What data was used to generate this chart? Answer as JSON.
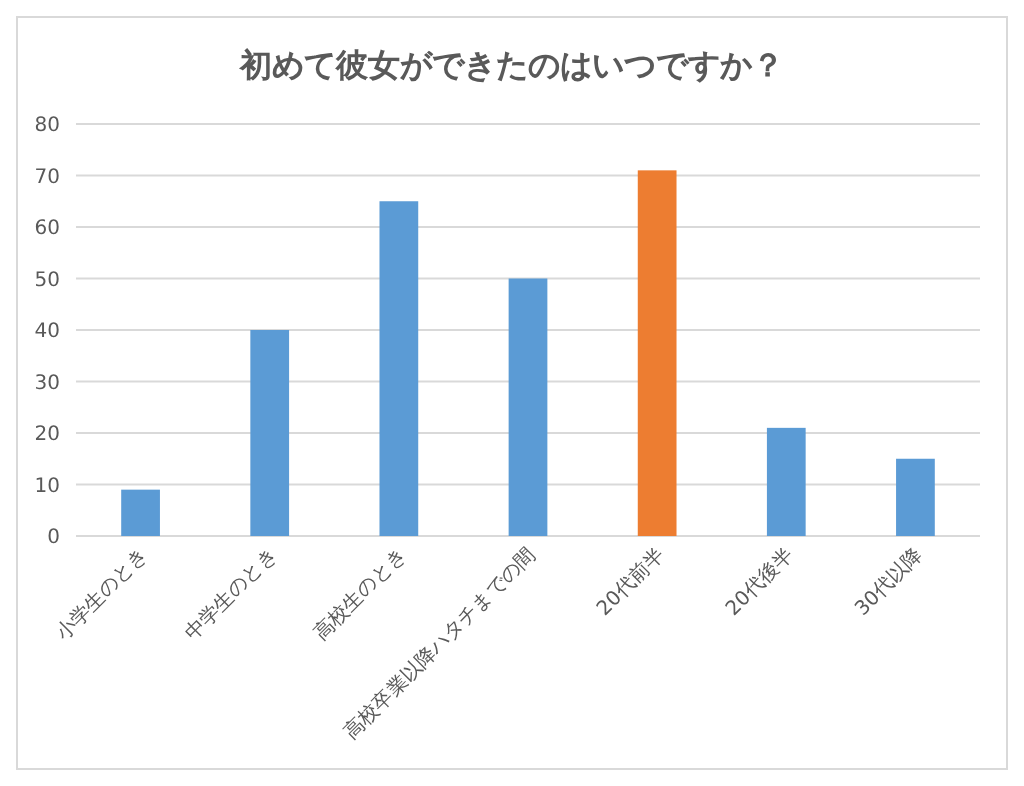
{
  "chart_data": {
    "type": "bar",
    "title": "初めて彼女ができたのはいつですか？",
    "categories": [
      "小学生のとき",
      "中学生のとき",
      "高校生のとき",
      "高校卒業以降ハタチまでの間",
      "20代前半",
      "20代後半",
      "30代以降"
    ],
    "values": [
      9,
      40,
      65,
      50,
      71,
      21,
      15
    ],
    "colors": [
      "#5b9bd5",
      "#5b9bd5",
      "#5b9bd5",
      "#5b9bd5",
      "#ed7d31",
      "#5b9bd5",
      "#5b9bd5"
    ],
    "ylim": [
      0,
      80
    ],
    "yticks": [
      0,
      10,
      20,
      30,
      40,
      50,
      60,
      70,
      80
    ],
    "grid": "y"
  }
}
